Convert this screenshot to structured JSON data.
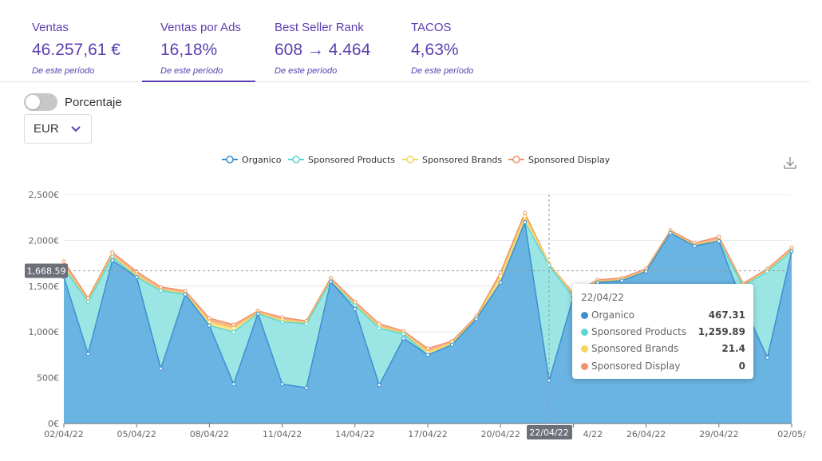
{
  "kpis": [
    {
      "label": "Ventas",
      "value": "46.257,61 €",
      "sub": "De este período"
    },
    {
      "label": "Ventas por Ads",
      "value": "16,18%",
      "sub": "De este período"
    },
    {
      "label": "Best Seller Rank",
      "value": "608 → 4.464",
      "sub": "De este período"
    },
    {
      "label": "TACOS",
      "value": "4,63%",
      "sub": "De este período"
    }
  ],
  "controls": {
    "toggle_label": "Porcentaje",
    "toggle_on": false,
    "currency": "EUR",
    "icons": {
      "currency_chevron": "chevron-down-icon",
      "download": "download-icon"
    }
  },
  "chart_data": {
    "type": "area",
    "stacked": true,
    "legend_position": "top-center",
    "x": [
      "02/04/22",
      "03/04/22",
      "04/04/22",
      "05/04/22",
      "06/04/22",
      "07/04/22",
      "08/04/22",
      "09/04/22",
      "10/04/22",
      "11/04/22",
      "12/04/22",
      "13/04/22",
      "14/04/22",
      "15/04/22",
      "16/04/22",
      "17/04/22",
      "18/04/22",
      "19/04/22",
      "20/04/22",
      "21/04/22",
      "22/04/22",
      "23/04/22",
      "24/04/22",
      "25/04/22",
      "26/04/22",
      "27/04/22",
      "28/04/22",
      "29/04/22",
      "30/04/22",
      "01/05/22",
      "02/05/22"
    ],
    "x_tick_labels": [
      "02/04/22",
      "05/04/22",
      "08/04/22",
      "11/04/22",
      "14/04/22",
      "17/04/22",
      "20/04/22",
      "22/04/22",
      "26/04/22",
      "29/04/22",
      "02/05/"
    ],
    "y_ticks": [
      "0€",
      "500€",
      "1,000€",
      "1,500€",
      "2,000€",
      "2,500€"
    ],
    "ylim": [
      0,
      2500
    ],
    "grid": true,
    "series": [
      {
        "name": "Organico",
        "color": "#3d8fcf",
        "fill": "#6ab4e3",
        "values": [
          1600,
          760,
          1780,
          1600,
          600,
          1410,
          1070,
          430,
          1200,
          430,
          390,
          1550,
          1250,
          420,
          930,
          750,
          860,
          1140,
          1540,
          2200,
          467.31,
          1380,
          1540,
          1560,
          1660,
          2080,
          1940,
          1990,
          1300,
          720,
          1880
        ]
      },
      {
        "name": "Sponsored Products",
        "color": "#5dd5d5",
        "fill": "#9be6e4",
        "values": [
          100,
          570,
          40,
          0,
          850,
          0,
          0,
          570,
          0,
          680,
          700,
          0,
          40,
          620,
          50,
          0,
          0,
          0,
          0,
          0,
          1259.89,
          0,
          0,
          0,
          0,
          0,
          0,
          0,
          200,
          940,
          0
        ]
      },
      {
        "name": "Sponsored Brands",
        "color": "#f6d55c",
        "fill": "#f9e48a",
        "values": [
          20,
          10,
          20,
          20,
          10,
          10,
          40,
          40,
          10,
          20,
          10,
          10,
          10,
          20,
          10,
          30,
          20,
          10,
          70,
          60,
          21.4,
          20,
          10,
          10,
          10,
          10,
          10,
          10,
          10,
          10,
          10
        ]
      },
      {
        "name": "Sponsored Display",
        "color": "#f2946a",
        "fill": "#f5b593",
        "values": [
          50,
          30,
          30,
          40,
          30,
          30,
          40,
          40,
          20,
          30,
          20,
          30,
          30,
          30,
          20,
          40,
          20,
          20,
          40,
          40,
          0,
          20,
          20,
          20,
          20,
          20,
          20,
          40,
          20,
          20,
          30
        ]
      }
    ],
    "hover": {
      "date": "22/04/22",
      "y_marker_label": "1,668.59",
      "x_marker_label": "22/04/22",
      "rows": [
        {
          "name": "Organico",
          "value": "467.31"
        },
        {
          "name": "Sponsored Products",
          "value": "1,259.89"
        },
        {
          "name": "Sponsored Brands",
          "value": "21.4"
        },
        {
          "name": "Sponsored Display",
          "value": "0"
        }
      ]
    }
  }
}
